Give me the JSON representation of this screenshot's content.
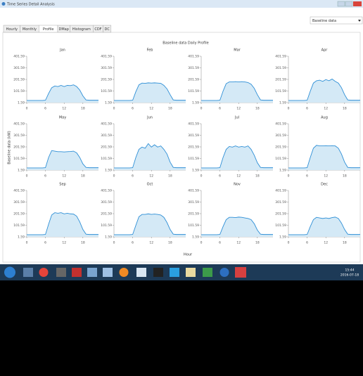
{
  "window": {
    "title": "Time Series Detail Analysis"
  },
  "tabs": [
    "Hourly",
    "Monthly",
    "Profile",
    "DMap",
    "Histogram",
    "CDF",
    "DC"
  ],
  "dropdown": "Baseline data",
  "taskbar": {
    "time": "15:44",
    "date": "2016-07-18"
  },
  "figure": {
    "title": "Baseline data Daily Profile",
    "ylabel": "Baseline data (kW)",
    "xlabel": "Hour"
  },
  "chart_data": [
    {
      "type": "area",
      "title": "Jan",
      "color": "#2e8fd6",
      "xlim": [
        0,
        23
      ],
      "ylim": [
        1.59,
        401.59
      ],
      "xticks": [
        0,
        6,
        12,
        18
      ],
      "yticks": [
        1.59,
        101.59,
        201.59,
        301.59,
        401.59
      ],
      "x": [
        0,
        1,
        2,
        3,
        4,
        5,
        6,
        7,
        8,
        9,
        10,
        11,
        12,
        13,
        14,
        15,
        16,
        17,
        18,
        19,
        20,
        21,
        22,
        23
      ],
      "values": [
        20,
        20,
        20,
        20,
        20,
        20,
        22,
        80,
        130,
        145,
        140,
        150,
        140,
        150,
        148,
        155,
        140,
        110,
        60,
        25,
        22,
        22,
        22,
        22
      ]
    },
    {
      "type": "area",
      "title": "Feb",
      "color": "#2e8fd6",
      "xlim": [
        0,
        23
      ],
      "ylim": [
        1.59,
        401.59
      ],
      "xticks": [
        0,
        6,
        12,
        18
      ],
      "yticks": [
        1.59,
        101.59,
        201.59,
        301.59,
        401.59
      ],
      "x": [
        0,
        1,
        2,
        3,
        4,
        5,
        6,
        7,
        8,
        9,
        10,
        11,
        12,
        13,
        14,
        15,
        16,
        17,
        18,
        19,
        20,
        21,
        22,
        23
      ],
      "values": [
        20,
        20,
        20,
        20,
        20,
        20,
        22,
        95,
        155,
        170,
        168,
        172,
        170,
        172,
        170,
        168,
        150,
        120,
        70,
        25,
        22,
        22,
        22,
        22
      ]
    },
    {
      "type": "area",
      "title": "Mar",
      "color": "#2e8fd6",
      "xlim": [
        0,
        23
      ],
      "ylim": [
        1.59,
        401.59
      ],
      "xticks": [
        0,
        6,
        12,
        18
      ],
      "yticks": [
        1.59,
        101.59,
        201.59,
        301.59,
        401.59
      ],
      "x": [
        0,
        1,
        2,
        3,
        4,
        5,
        6,
        7,
        8,
        9,
        10,
        11,
        12,
        13,
        14,
        15,
        16,
        17,
        18,
        19,
        20,
        21,
        22,
        23
      ],
      "values": [
        20,
        20,
        20,
        20,
        20,
        20,
        22,
        100,
        165,
        180,
        180,
        182,
        180,
        182,
        180,
        175,
        160,
        125,
        70,
        25,
        22,
        22,
        22,
        22
      ]
    },
    {
      "type": "area",
      "title": "Apr",
      "color": "#2e8fd6",
      "xlim": [
        0,
        23
      ],
      "ylim": [
        1.59,
        401.59
      ],
      "xticks": [
        0,
        6,
        12,
        18
      ],
      "yticks": [
        1.59,
        101.59,
        201.59,
        301.59,
        401.59
      ],
      "x": [
        0,
        1,
        2,
        3,
        4,
        5,
        6,
        7,
        8,
        9,
        10,
        11,
        12,
        13,
        14,
        15,
        16,
        17,
        18,
        19,
        20,
        21,
        22,
        23
      ],
      "values": [
        20,
        20,
        20,
        20,
        20,
        20,
        22,
        100,
        170,
        190,
        195,
        185,
        200,
        190,
        205,
        185,
        170,
        130,
        70,
        25,
        22,
        22,
        22,
        22
      ]
    },
    {
      "type": "area",
      "title": "May",
      "color": "#2e8fd6",
      "xlim": [
        0,
        23
      ],
      "ylim": [
        1.59,
        401.59
      ],
      "xticks": [
        0,
        6,
        12,
        18
      ],
      "yticks": [
        1.59,
        101.59,
        201.59,
        301.59,
        401.59
      ],
      "x": [
        0,
        1,
        2,
        3,
        4,
        5,
        6,
        7,
        8,
        9,
        10,
        11,
        12,
        13,
        14,
        15,
        16,
        17,
        18,
        19,
        20,
        21,
        22,
        23
      ],
      "values": [
        20,
        20,
        20,
        20,
        20,
        20,
        22,
        110,
        170,
        165,
        160,
        160,
        158,
        160,
        162,
        165,
        150,
        110,
        55,
        25,
        22,
        22,
        22,
        22
      ]
    },
    {
      "type": "area",
      "title": "Jun",
      "color": "#2e8fd6",
      "xlim": [
        0,
        23
      ],
      "ylim": [
        1.59,
        401.59
      ],
      "xticks": [
        0,
        6,
        12,
        18
      ],
      "yticks": [
        1.59,
        101.59,
        201.59,
        301.59,
        401.59
      ],
      "x": [
        0,
        1,
        2,
        3,
        4,
        5,
        6,
        7,
        8,
        9,
        10,
        11,
        12,
        13,
        14,
        15,
        16,
        17,
        18,
        19,
        20,
        21,
        22,
        23
      ],
      "values": [
        20,
        20,
        20,
        20,
        20,
        20,
        22,
        110,
        180,
        200,
        190,
        230,
        200,
        220,
        200,
        210,
        180,
        140,
        70,
        25,
        22,
        22,
        22,
        22
      ]
    },
    {
      "type": "area",
      "title": "Jul",
      "color": "#2e8fd6",
      "xlim": [
        0,
        23
      ],
      "ylim": [
        1.59,
        401.59
      ],
      "xticks": [
        0,
        6,
        12,
        18
      ],
      "yticks": [
        1.59,
        101.59,
        201.59,
        301.59,
        401.59
      ],
      "x": [
        0,
        1,
        2,
        3,
        4,
        5,
        6,
        7,
        8,
        9,
        10,
        11,
        12,
        13,
        14,
        15,
        16,
        17,
        18,
        19,
        20,
        21,
        22,
        23
      ],
      "values": [
        20,
        20,
        20,
        20,
        20,
        20,
        22,
        110,
        180,
        205,
        200,
        210,
        200,
        205,
        200,
        210,
        180,
        130,
        65,
        25,
        22,
        22,
        22,
        22
      ]
    },
    {
      "type": "area",
      "title": "Aug",
      "color": "#2e8fd6",
      "xlim": [
        0,
        23
      ],
      "ylim": [
        1.59,
        401.59
      ],
      "xticks": [
        0,
        6,
        12,
        18
      ],
      "yticks": [
        1.59,
        101.59,
        201.59,
        301.59,
        401.59
      ],
      "x": [
        0,
        1,
        2,
        3,
        4,
        5,
        6,
        7,
        8,
        9,
        10,
        11,
        12,
        13,
        14,
        15,
        16,
        17,
        18,
        19,
        20,
        21,
        22,
        23
      ],
      "values": [
        20,
        20,
        20,
        20,
        20,
        20,
        22,
        110,
        190,
        215,
        210,
        210,
        212,
        210,
        212,
        210,
        190,
        140,
        70,
        25,
        22,
        22,
        22,
        22
      ]
    },
    {
      "type": "area",
      "title": "Sep",
      "color": "#2e8fd6",
      "xlim": [
        0,
        23
      ],
      "ylim": [
        1.59,
        401.59
      ],
      "xticks": [
        0,
        6,
        12,
        18
      ],
      "yticks": [
        1.59,
        101.59,
        201.59,
        301.59,
        401.59
      ],
      "x": [
        0,
        1,
        2,
        3,
        4,
        5,
        6,
        7,
        8,
        9,
        10,
        11,
        12,
        13,
        14,
        15,
        16,
        17,
        18,
        19,
        20,
        21,
        22,
        23
      ],
      "values": [
        20,
        20,
        20,
        20,
        20,
        20,
        22,
        110,
        190,
        210,
        205,
        210,
        200,
        205,
        200,
        198,
        180,
        130,
        65,
        25,
        22,
        22,
        22,
        22
      ]
    },
    {
      "type": "area",
      "title": "Oct",
      "color": "#2e8fd6",
      "xlim": [
        0,
        23
      ],
      "ylim": [
        1.59,
        401.59
      ],
      "xticks": [
        0,
        6,
        12,
        18
      ],
      "yticks": [
        1.59,
        101.59,
        201.59,
        301.59,
        401.59
      ],
      "x": [
        0,
        1,
        2,
        3,
        4,
        5,
        6,
        7,
        8,
        9,
        10,
        11,
        12,
        13,
        14,
        15,
        16,
        17,
        18,
        19,
        20,
        21,
        22,
        23
      ],
      "values": [
        20,
        20,
        20,
        20,
        20,
        20,
        22,
        100,
        175,
        195,
        195,
        200,
        195,
        198,
        195,
        190,
        170,
        125,
        65,
        25,
        22,
        22,
        22,
        22
      ]
    },
    {
      "type": "area",
      "title": "Nov",
      "color": "#2e8fd6",
      "xlim": [
        0,
        23
      ],
      "ylim": [
        1.59,
        401.59
      ],
      "xticks": [
        0,
        6,
        12,
        18
      ],
      "yticks": [
        1.59,
        101.59,
        201.59,
        301.59,
        401.59
      ],
      "x": [
        0,
        1,
        2,
        3,
        4,
        5,
        6,
        7,
        8,
        9,
        10,
        11,
        12,
        13,
        14,
        15,
        16,
        17,
        18,
        19,
        20,
        21,
        22,
        23
      ],
      "values": [
        20,
        20,
        20,
        20,
        20,
        20,
        22,
        90,
        150,
        170,
        170,
        168,
        172,
        170,
        165,
        160,
        150,
        115,
        60,
        25,
        22,
        22,
        22,
        22
      ]
    },
    {
      "type": "area",
      "title": "Dec",
      "color": "#2e8fd6",
      "xlim": [
        0,
        23
      ],
      "ylim": [
        1.59,
        401.59
      ],
      "xticks": [
        0,
        6,
        12,
        18
      ],
      "yticks": [
        1.59,
        101.59,
        201.59,
        301.59,
        401.59
      ],
      "x": [
        0,
        1,
        2,
        3,
        4,
        5,
        6,
        7,
        8,
        9,
        10,
        11,
        12,
        13,
        14,
        15,
        16,
        17,
        18,
        19,
        20,
        21,
        22,
        23
      ],
      "values": [
        20,
        20,
        20,
        20,
        20,
        20,
        22,
        90,
        150,
        170,
        165,
        160,
        165,
        160,
        168,
        172,
        160,
        120,
        65,
        25,
        22,
        22,
        22,
        22
      ]
    }
  ]
}
